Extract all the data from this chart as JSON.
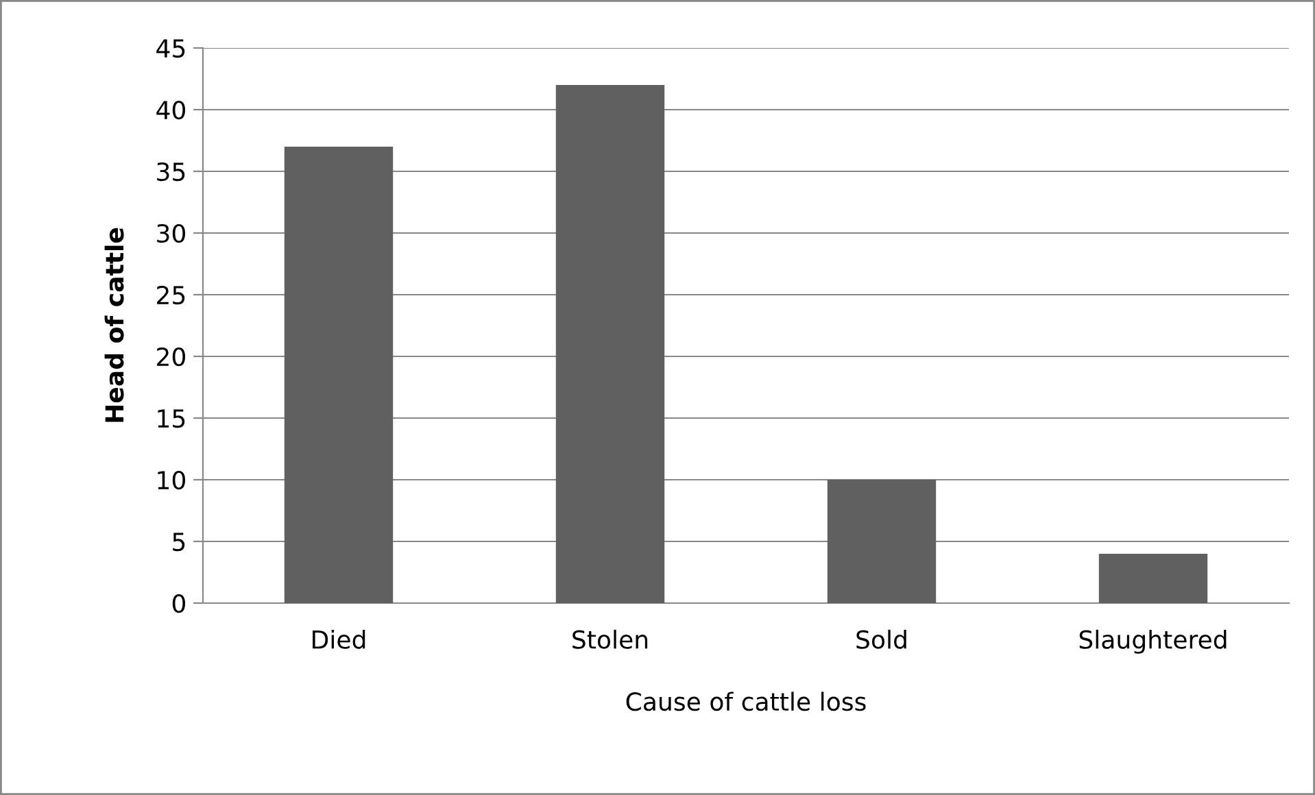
{
  "chart_data": {
    "type": "bar",
    "xlabel": "Cause of cattle loss",
    "ylabel": "Head of cattle",
    "categories": [
      "Died",
      "Stolen",
      "Sold",
      "Slaughtered"
    ],
    "values": [
      37,
      42,
      10,
      4
    ],
    "color": "#606060",
    "ylim": [
      0,
      45
    ],
    "yticks": [
      0,
      5,
      10,
      15,
      20,
      25,
      30,
      35,
      40,
      45
    ],
    "grid": "y"
  }
}
